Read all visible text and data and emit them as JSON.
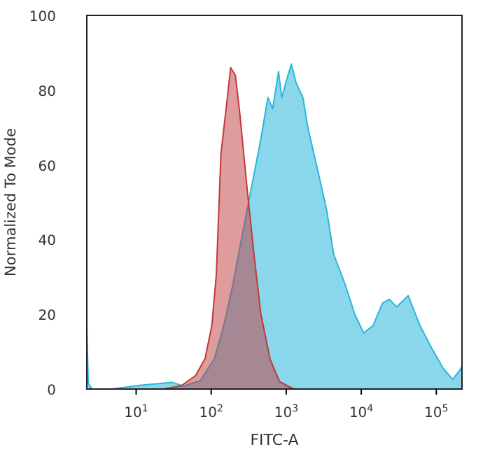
{
  "chart_data": {
    "type": "area",
    "xlabel": "FITC-A",
    "ylabel": "Normalized To Mode",
    "log": "x",
    "xlim": [
      2.2,
      220000
    ],
    "ylim": [
      0,
      100
    ],
    "xticks": [
      {
        "value": 10,
        "label": "10$^{1}$"
      },
      {
        "value": 100,
        "label": "10$^{2}$"
      },
      {
        "value": 1000,
        "label": "10$^{3}$"
      },
      {
        "value": 10000,
        "label": "10$^{4}$"
      },
      {
        "value": 100000,
        "label": "10$^{5}$"
      }
    ],
    "yticks": [
      0,
      20,
      40,
      60,
      80,
      100
    ],
    "grid": false,
    "series": [
      {
        "color": "#29b6dc",
        "x": [
          2.2,
          2.3,
          2.6,
          4.7,
          11,
          30,
          43,
          71,
          110,
          147,
          195,
          258,
          344,
          460,
          570,
          660,
          790,
          870,
          1020,
          1170,
          1350,
          1670,
          1940,
          2600,
          3450,
          4300,
          6100,
          8200,
          10800,
          14400,
          19200,
          23700,
          29700,
          42200,
          60500,
          86500,
          124000,
          165000,
          205000,
          220000
        ],
        "values": [
          17,
          1.5,
          0,
          0,
          1,
          1.8,
          0.8,
          2.2,
          8,
          17,
          28,
          41,
          54,
          67,
          78,
          75,
          85,
          78,
          83,
          87,
          82,
          78,
          70,
          59,
          48,
          36,
          28,
          20,
          15,
          17,
          23,
          24,
          22,
          25,
          17,
          11,
          5.5,
          2.6,
          5,
          6
        ]
      },
      {
        "color": "#c0393b",
        "x": [
          23,
          40,
          62,
          83,
          102,
          117,
          135,
          158,
          182,
          210,
          240,
          300,
          372,
          460,
          610,
          815,
          1260
        ],
        "values": [
          0,
          0.9,
          3.6,
          8.2,
          17,
          30.5,
          63,
          75,
          86,
          84,
          74,
          54,
          36,
          20,
          8,
          2,
          0
        ]
      }
    ]
  }
}
